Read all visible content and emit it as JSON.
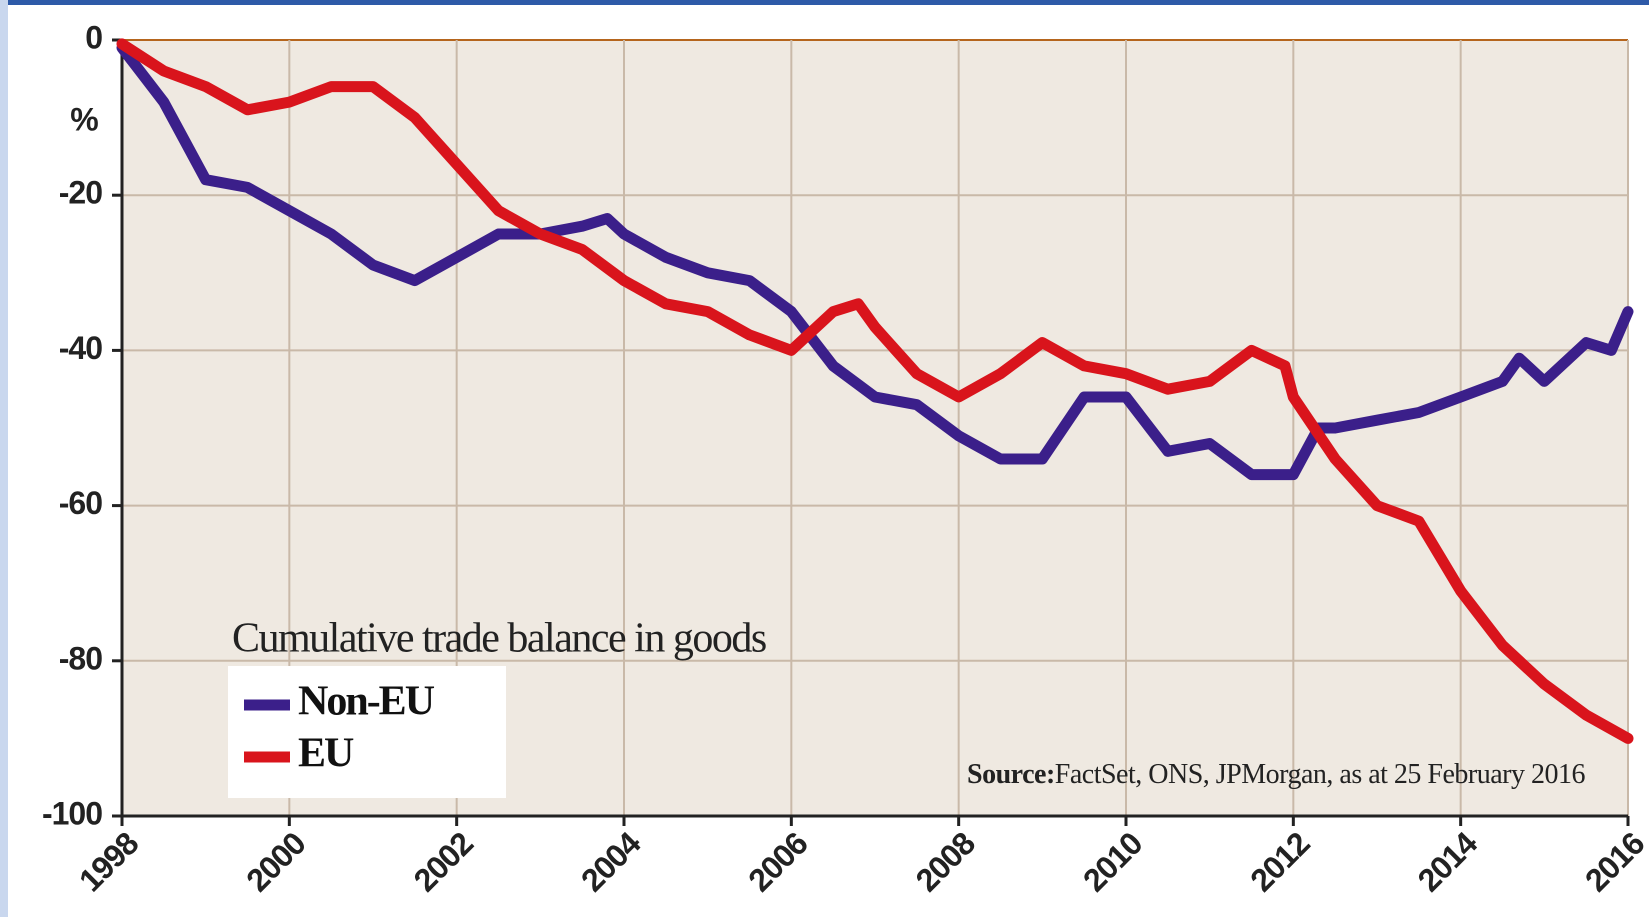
{
  "chart_data": {
    "type": "line",
    "title": "Cumulative trade balance in goods",
    "y_label": "%",
    "source_label": "Source:",
    "source": "FactSet, ONS, JPMorgan, as at 25 February 2016",
    "xlim": [
      1998,
      2016
    ],
    "xticks": [
      1998,
      2000,
      2002,
      2004,
      2006,
      2008,
      2010,
      2012,
      2014,
      2016
    ],
    "ylim": [
      -100,
      0
    ],
    "yticks": [
      0,
      -20,
      -40,
      -60,
      -80,
      -100
    ],
    "grid": true,
    "legend": "lower left",
    "series": [
      {
        "name": "Non-EU",
        "color": "#3b1f8a",
        "x": [
          1998,
          1998.5,
          1999,
          1999.5,
          2000,
          2000.5,
          2001,
          2001.5,
          2002,
          2002.5,
          2003,
          2003.5,
          2003.8,
          2004,
          2004.5,
          2005,
          2005.5,
          2006,
          2006.5,
          2007,
          2007.5,
          2008,
          2008.5,
          2009,
          2009.5,
          2010,
          2010.5,
          2011,
          2011.5,
          2012,
          2012.3,
          2012.5,
          2013,
          2013.5,
          2014,
          2014.5,
          2014.7,
          2015,
          2015.5,
          2015.8,
          2016
        ],
        "values": [
          -1,
          -8,
          -18,
          -19,
          -22,
          -25,
          -29,
          -31,
          -28,
          -25,
          -25,
          -24,
          -23,
          -25,
          -28,
          -30,
          -31,
          -35,
          -42,
          -46,
          -47,
          -51,
          -54,
          -54,
          -46,
          -46,
          -53,
          -52,
          -56,
          -56,
          -50,
          -50,
          -49,
          -48,
          -46,
          -44,
          -41,
          -44,
          -39,
          -40,
          -35
        ]
      },
      {
        "name": "EU",
        "color": "#d9141c",
        "x": [
          1998,
          1998.5,
          1999,
          1999.5,
          2000,
          2000.5,
          2001,
          2001.5,
          2002,
          2002.5,
          2003,
          2003.5,
          2004,
          2004.5,
          2005,
          2005.5,
          2006,
          2006.5,
          2006.8,
          2007,
          2007.5,
          2008,
          2008.5,
          2009,
          2009.5,
          2010,
          2010.5,
          2011,
          2011.5,
          2011.9,
          2012,
          2012.5,
          2013,
          2013.5,
          2014,
          2014.5,
          2015,
          2015.5,
          2016
        ],
        "values": [
          -0.5,
          -4,
          -6,
          -9,
          -8,
          -6,
          -6,
          -10,
          -16,
          -22,
          -25,
          -27,
          -31,
          -34,
          -35,
          -38,
          -40,
          -35,
          -34,
          -37,
          -43,
          -46,
          -43,
          -39,
          -42,
          -43,
          -45,
          -44,
          -40,
          -42,
          -46,
          -54,
          -60,
          -62,
          -71,
          -78,
          -83,
          -87,
          -90
        ]
      }
    ]
  }
}
